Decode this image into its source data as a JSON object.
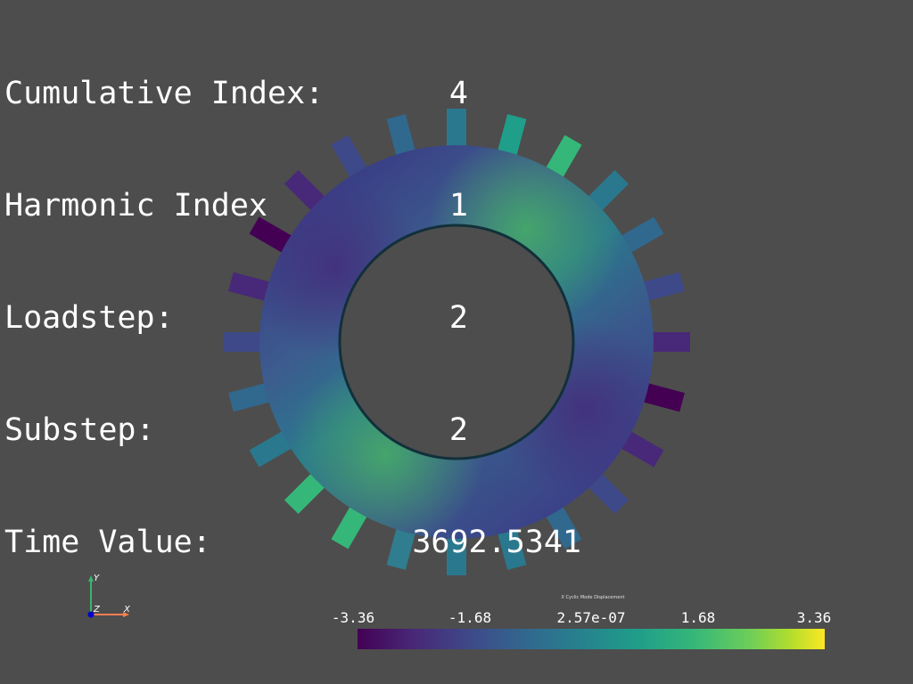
{
  "info": {
    "rows": [
      {
        "label": "Cumulative Index:",
        "value": "4"
      },
      {
        "label": "Harmonic Index",
        "value": "1"
      },
      {
        "label": "Loadstep:",
        "value": "2"
      },
      {
        "label": "Substep:",
        "value": "2"
      },
      {
        "label": "Time Value:",
        "value": "3692.5341"
      }
    ]
  },
  "scalar_bar": {
    "title": "X Cyclic Mode Displacement",
    "ticks": [
      "-3.36",
      "-1.68",
      "2.57e-07",
      "1.68",
      "3.36"
    ],
    "colormap": "viridis"
  },
  "axes": {
    "x_label": "X",
    "y_label": "Y",
    "z_label": "Z",
    "x_color": "#ff7f50",
    "y_color": "#3cb371",
    "z_color": "#0000cd"
  },
  "colors": {
    "background": "#4d4d4d"
  }
}
